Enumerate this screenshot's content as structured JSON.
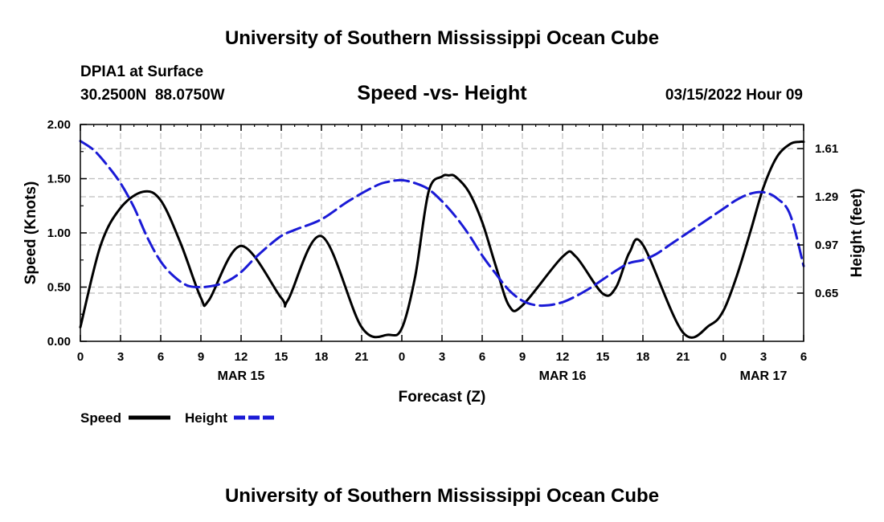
{
  "chart_data": {
    "type": "line",
    "title": "University of Southern Mississippi Ocean Cube",
    "footer_title": "University of Southern Mississippi Ocean Cube",
    "station": "DPIA1 at Surface",
    "coords": "30.2500N  88.0750W",
    "subtitle": "Speed -vs- Height",
    "datetime": "03/15/2022 Hour 09",
    "xlabel": "Forecast (Z)",
    "ylabel_left": "Speed (Knots)",
    "ylabel_right": "Height (feet)",
    "xlim": [
      0,
      54
    ],
    "ylim_left": [
      0,
      2.0
    ],
    "ylim_right": [
      0.33,
      1.77
    ],
    "x_ticks": [
      0,
      3,
      6,
      9,
      12,
      15,
      18,
      21,
      24,
      27,
      30,
      33,
      36,
      39,
      42,
      45,
      48,
      51,
      54
    ],
    "x_tick_labels": [
      "0",
      "3",
      "6",
      "9",
      "12",
      "15",
      "18",
      "21",
      "0",
      "3",
      "6",
      "9",
      "12",
      "15",
      "18",
      "21",
      "0",
      "3",
      "6"
    ],
    "date_labels": [
      {
        "x": 12,
        "label": "MAR 15"
      },
      {
        "x": 36,
        "label": "MAR 16"
      },
      {
        "x": 51,
        "label": "MAR 17"
      }
    ],
    "left_ticks": [
      0.0,
      0.5,
      1.0,
      1.5,
      2.0
    ],
    "left_tick_labels": [
      "0.00",
      "0.50",
      "1.00",
      "1.50",
      "2.00"
    ],
    "right_ticks": [
      0.65,
      0.97,
      1.29,
      1.61
    ],
    "right_tick_labels": [
      "0.65",
      "0.97",
      "1.29",
      "1.61"
    ],
    "grid": true,
    "legend_position": "bottom-left",
    "series": [
      {
        "name": "Speed",
        "axis": "left",
        "color": "#000000",
        "style": "solid",
        "x": [
          0,
          1.5,
          3,
          4.7,
          6,
          7.5,
          9,
          9.6,
          12,
          15,
          15.5,
          18,
          21,
          23,
          24,
          25,
          26,
          27,
          27.5,
          28,
          29,
          30,
          31,
          32,
          33,
          36,
          37,
          39,
          40,
          41,
          42,
          45,
          47,
          48,
          49,
          50,
          51,
          52,
          53,
          53.7,
          54
        ],
        "values": [
          0.13,
          0.88,
          1.23,
          1.38,
          1.3,
          0.9,
          0.4,
          0.38,
          0.88,
          0.4,
          0.38,
          0.97,
          0.13,
          0.06,
          0.12,
          0.6,
          1.38,
          1.52,
          1.53,
          1.52,
          1.38,
          1.1,
          0.7,
          0.33,
          0.33,
          0.78,
          0.78,
          0.44,
          0.5,
          0.82,
          0.89,
          0.08,
          0.15,
          0.28,
          0.6,
          1.0,
          1.42,
          1.7,
          1.82,
          1.84,
          1.84
        ]
      },
      {
        "name": "Height",
        "axis": "right",
        "color": "#1a1ad6",
        "style": "dashed",
        "x": [
          0,
          1,
          2,
          3,
          4,
          5,
          6,
          7,
          8,
          9,
          10,
          11,
          12,
          13,
          14,
          15,
          16,
          18,
          20,
          22,
          23,
          24,
          25,
          26,
          27,
          28,
          29,
          30,
          31,
          32,
          33,
          34,
          35,
          36,
          37,
          38,
          39,
          40,
          41,
          42,
          43,
          44,
          45,
          46,
          47,
          48,
          49,
          50,
          51,
          52,
          53,
          54
        ],
        "values": [
          1.66,
          1.6,
          1.5,
          1.38,
          1.22,
          1.02,
          0.86,
          0.76,
          0.7,
          0.69,
          0.7,
          0.73,
          0.79,
          0.88,
          0.96,
          1.03,
          1.07,
          1.14,
          1.26,
          1.36,
          1.39,
          1.4,
          1.38,
          1.34,
          1.26,
          1.16,
          1.04,
          0.9,
          0.78,
          0.67,
          0.6,
          0.57,
          0.57,
          0.59,
          0.63,
          0.68,
          0.74,
          0.8,
          0.85,
          0.87,
          0.91,
          0.97,
          1.03,
          1.09,
          1.15,
          1.21,
          1.27,
          1.31,
          1.32,
          1.28,
          1.17,
          0.83
        ]
      }
    ]
  },
  "legend": {
    "speed_label": "Speed",
    "height_label": "Height"
  }
}
